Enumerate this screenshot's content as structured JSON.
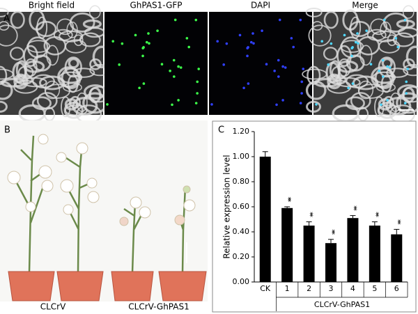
{
  "panels": {
    "a": "A",
    "b": "B",
    "c": "C"
  },
  "microscopy": {
    "channels": [
      "Bright field",
      "GhPAS1-GFP",
      "DAPI",
      "Merge"
    ]
  },
  "photo": {
    "groups": [
      "CLCrV",
      "CLCrV-GhPAS1"
    ]
  },
  "chart_data": {
    "type": "bar",
    "y_label": "Relative expression level",
    "x_label": "CLCrV-GhPAS1",
    "categories": [
      "CK",
      "1",
      "2",
      "3",
      "4",
      "5",
      "6"
    ],
    "values": [
      1.0,
      0.59,
      0.45,
      0.31,
      0.51,
      0.45,
      0.38
    ],
    "errors": [
      0.04,
      0.01,
      0.03,
      0.03,
      0.02,
      0.03,
      0.04
    ],
    "significance": [
      null,
      "**",
      "**",
      "**",
      "**",
      "**",
      "**"
    ],
    "color": "#000000",
    "ylim": [
      0,
      1.2
    ],
    "yticks": [
      {
        "value": 0,
        "label": "0.00"
      },
      {
        "value": 0.2,
        "label": "0.20"
      },
      {
        "value": 0.4,
        "label": "0.40"
      },
      {
        "value": 0.6,
        "label": "0.60"
      },
      {
        "value": 0.8,
        "label": "0.80"
      },
      {
        "value": 1.0,
        "label": "1.00"
      },
      {
        "value": 1.2,
        "label": "1.20"
      }
    ]
  }
}
